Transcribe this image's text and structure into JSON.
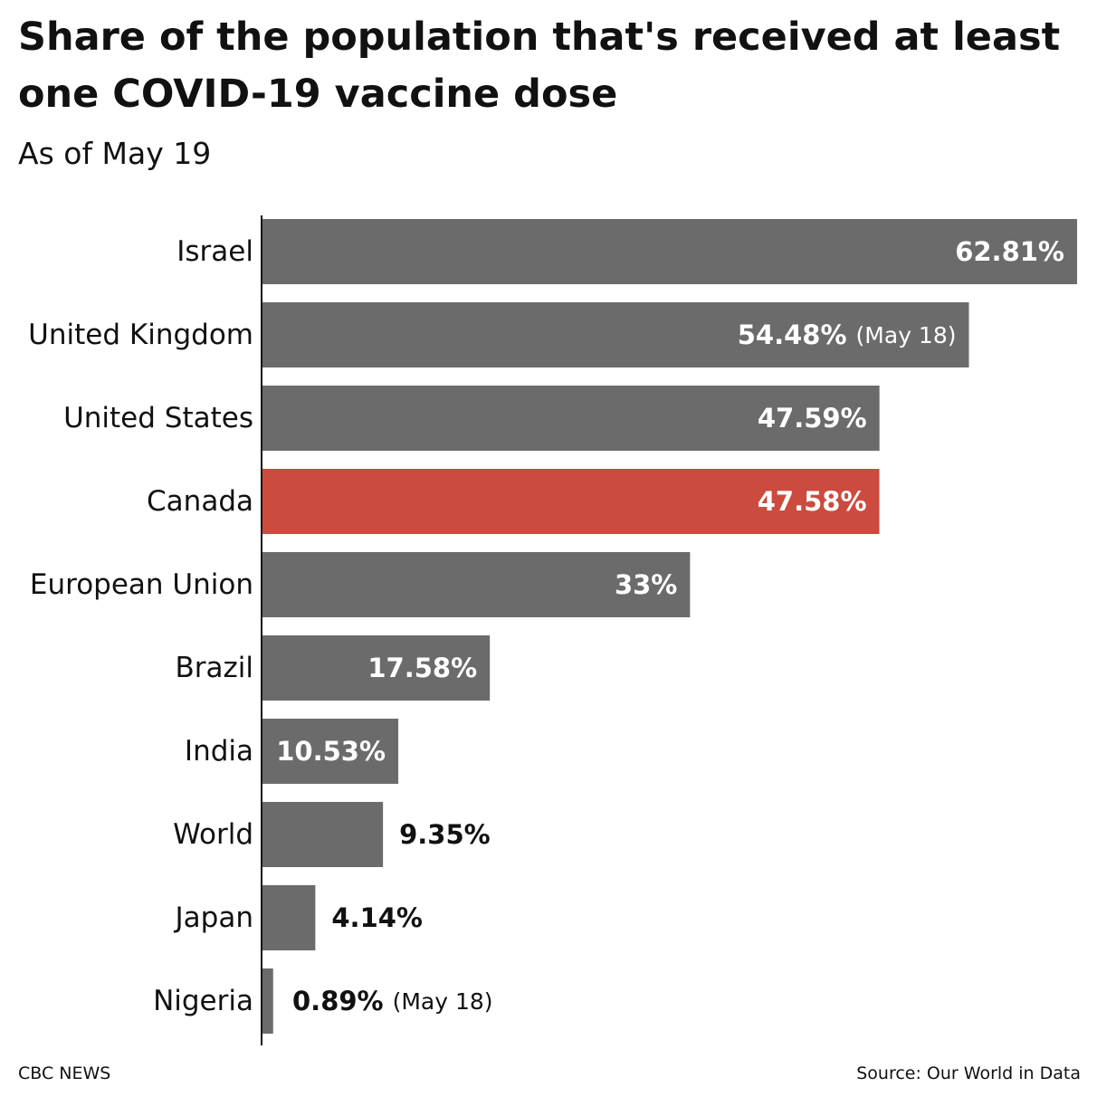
{
  "header": {
    "title": "Share of the population that's received at least one COVID-19 vaccine dose",
    "subtitle": "As of May 19"
  },
  "chart_data": {
    "type": "bar",
    "orientation": "horizontal",
    "categories": [
      "Israel",
      "United Kingdom",
      "United States",
      "Canada",
      "European Union",
      "Brazil",
      "India",
      "World",
      "Japan",
      "Nigeria"
    ],
    "values": [
      62.81,
      54.48,
      47.59,
      47.58,
      33,
      17.58,
      10.53,
      9.35,
      4.14,
      0.89
    ],
    "value_labels": [
      "62.81%",
      "54.48%",
      "47.59%",
      "47.58%",
      "33%",
      "17.58%",
      "10.53%",
      "9.35%",
      "4.14%",
      "0.89%"
    ],
    "notes": [
      "",
      "(May 18)",
      "",
      "",
      "",
      "",
      "",
      "",
      "",
      "(May 18)"
    ],
    "highlight": "Canada",
    "colors": {
      "default": "#6b6b6b",
      "highlight": "#cb4b3e"
    },
    "xlim": [
      0,
      62.81
    ],
    "grid": false
  },
  "footer": {
    "credit": "CBC NEWS",
    "source": "Source: Our World in Data"
  }
}
